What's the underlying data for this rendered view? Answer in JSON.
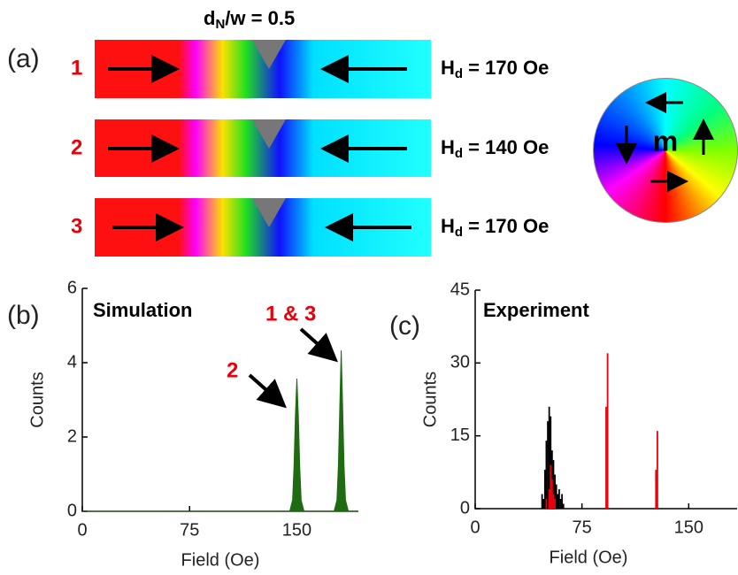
{
  "panel_a": {
    "label": "(a)",
    "title": {
      "main": "d",
      "sub": "N",
      "rest": "/w = 0.5"
    },
    "rows": [
      {
        "label": "1",
        "field": {
          "main": "H",
          "sub": "d",
          "rest": " = 170 Oe"
        }
      },
      {
        "label": "2",
        "field": {
          "main": "H",
          "sub": "d",
          "rest": " = 140 Oe"
        }
      },
      {
        "label": "3",
        "field": {
          "main": "H",
          "sub": "d",
          "rest": " = 170 Oe"
        }
      }
    ],
    "wheel_label": "m"
  },
  "chart_data": [
    {
      "type": "area",
      "panel_label": "(b)",
      "annotations": [
        "Simulation",
        "2",
        "1 & 3"
      ],
      "xlabel": "Field (Oe)",
      "ylabel": "Counts",
      "x": [
        0,
        145,
        147,
        148,
        149,
        150,
        151,
        152,
        153,
        155,
        176,
        178,
        179,
        180,
        181,
        182,
        183,
        184,
        186,
        193
      ],
      "series": [
        {
          "color": "#1e6b12",
          "values": [
            0,
            0,
            0.3,
            1.2,
            2.6,
            3.57,
            2.6,
            1.2,
            0.3,
            0,
            0,
            0.3,
            1.2,
            2.8,
            4.33,
            2.8,
            1.2,
            0.3,
            0,
            0
          ]
        }
      ],
      "xlim": [
        0,
        193
      ],
      "ylim": [
        0,
        6
      ],
      "xticks": [
        0,
        75,
        150
      ],
      "yticks": [
        0,
        2,
        4,
        6
      ]
    },
    {
      "type": "bar",
      "panel_label": "(c)",
      "annotations": [
        "Experiment"
      ],
      "xlabel": "Field (Oe)",
      "ylabel": "Counts",
      "series": [
        {
          "color": "#000000",
          "x": [
            47,
            48,
            49,
            50,
            51,
            52,
            53,
            54,
            55,
            56,
            57,
            58,
            59,
            60,
            61,
            62
          ],
          "values": [
            3,
            2,
            8,
            14,
            18,
            21,
            19,
            12,
            10,
            7,
            5,
            3,
            4,
            2,
            3,
            1
          ]
        },
        {
          "color": "#e8000b",
          "x": [
            50,
            52,
            53,
            54,
            55,
            56,
            92,
            93,
            127,
            128
          ],
          "values": [
            2,
            4,
            9,
            6,
            3,
            2,
            21,
            32,
            8,
            16
          ]
        }
      ],
      "xlim": [
        0,
        184
      ],
      "ylim": [
        0,
        45
      ],
      "xticks": [
        0,
        75,
        150
      ],
      "yticks": [
        0,
        15,
        30,
        45
      ]
    }
  ]
}
